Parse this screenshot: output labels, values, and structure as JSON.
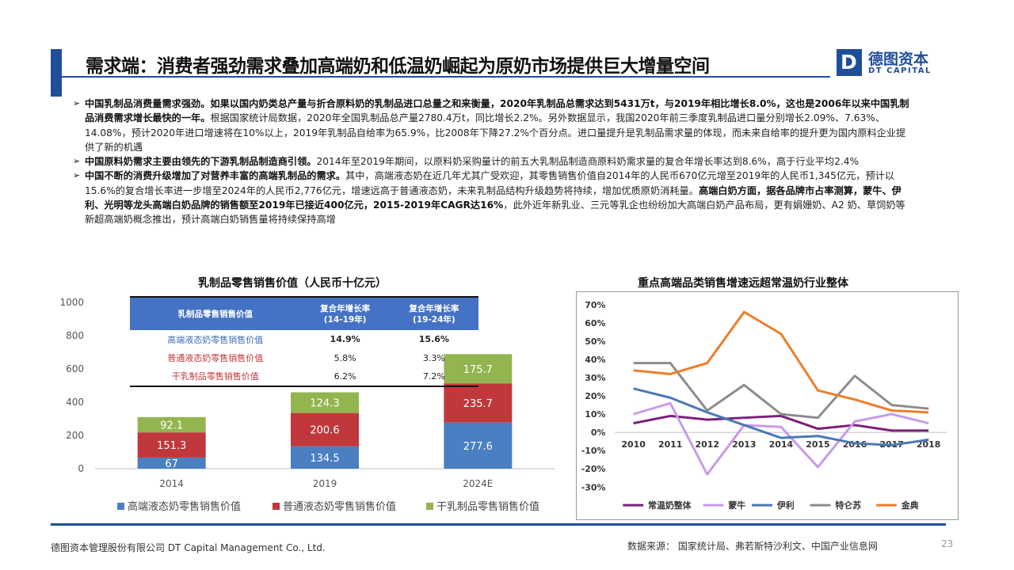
{
  "header": {
    "title": "需求端：消费者强劲需求叠加高端奶和低温奶崛起为原奶市场提供巨大增量空间",
    "logo_cn": "德图资本",
    "logo_en": "DT CAPITAL"
  },
  "bullets": [
    {
      "bold": "中国乳制品消费量需求强劲。如果以国内奶类总产量与折合原料奶的乳制品进口总量之和来衡量，2020年乳制品总需求达到5431万t，与2019年相比增长8.0%，这也是2006年以来中国乳制品消费需求增长最快的一年。",
      "text": "根据国家统计局数据，2020年全国乳制品总产量2780.4万t，同比增长2.2%。另外数据显示，我国2020年前三季度乳制品进口量分别增长2.09%、7.63%、14.08%，预计2020年进口增速将在10%以上，2019年乳制品自给率为65.9%，比2008年下降27.2%个百分点。进口量提升是乳制品需求量的体现，而未来自给率的提升更为国内原料企业提供了新的机遇",
      "bold2": "",
      "text2": ""
    },
    {
      "bold": "中国原料奶需求主要由领先的下游乳制品制造商引领。",
      "text": "2014年至2019年期间，以原料奶采购量计的前五大乳制品制造商原料奶需求量的复合年增长率达到8.6%，高于行业平均2.4%",
      "bold2": "",
      "text2": ""
    },
    {
      "bold": "中国不断的消费升级增加了对营养丰富的高端乳制品的需求。",
      "text": "其中，高端液态奶在近几年尤其广受欢迎，其零售销售价值自2014年的人民币670亿元增至2019年的人民币1,345亿元，预计以15.6%的复合增长率进一步增至2024年的人民币2,776亿元，增速远高于普通液态奶，未来乳制品结构升级趋势将持续，增加优质原奶消耗量。",
      "bold2": "高端白奶方面，据各品牌市占率测算，蒙牛、伊利、光明等龙头高端白奶品牌的销售额至2019年已接近400亿元，2015-2019年CAGR达16%",
      "text2": "，此外近年新乳业、三元等乳企也纷纷加大高端白奶产品布局，更有娟姗奶、A2 奶、草饲奶等新超高端奶概念推出，预计高端白奶销售量将持续保持高增"
    }
  ],
  "chart_data": [
    {
      "type": "bar",
      "title": "乳制品零售销售价值（人民币十亿元）",
      "categories": [
        "2014",
        "2019",
        "2024E"
      ],
      "series": [
        {
          "name": "高端液态奶零售销售价值",
          "values": [
            67,
            134.5,
            277.6
          ],
          "color": "#4a7fc1"
        },
        {
          "name": "普通液态奶零售销售价值",
          "values": [
            151.3,
            200.6,
            235.7
          ],
          "color": "#c0383c"
        },
        {
          "name": "干乳制品零售销售价值",
          "values": [
            92.1,
            124.3,
            175.7
          ],
          "color": "#93b550"
        }
      ],
      "stacked": true,
      "ylim": [
        0,
        1000
      ],
      "yticks": [
        0,
        200,
        400,
        600,
        800,
        1000
      ],
      "legend": "bottom",
      "table": {
        "headers": [
          "乳制品零售销售价值",
          "复合年增长率\n(14-19年)",
          "复合年增长率\n(19-24年)"
        ],
        "rows": [
          {
            "label": "高端液态奶零售销售价值",
            "c1": "14.9%",
            "c2": "15.6%",
            "color": "#3d6fb5",
            "bold": true
          },
          {
            "label": "普通液态奶零售销售价值",
            "c1": "5.8%",
            "c2": "3.3%",
            "color": "#c0383c",
            "bold": false
          },
          {
            "label": "干乳制品零售销售价值",
            "c1": "6.2%",
            "c2": "7.2%",
            "color": "#c0383c",
            "bold": false
          }
        ]
      }
    },
    {
      "type": "line",
      "title": "重点高端品类销售增速远超常温奶行业整体",
      "x": [
        "2010",
        "2011",
        "2012",
        "2013",
        "2014",
        "2015",
        "2016",
        "2017",
        "2018"
      ],
      "ylim": [
        -30,
        70
      ],
      "yticks": [
        -30,
        -20,
        -10,
        0,
        10,
        20,
        30,
        40,
        50,
        60,
        70
      ],
      "grid": false,
      "legend": "bottom",
      "series": [
        {
          "name": "常温奶整体",
          "values": [
            5,
            9,
            7,
            8,
            9,
            2,
            4,
            1,
            1
          ],
          "color": "#7b1f7a"
        },
        {
          "name": "蒙牛",
          "values": [
            10,
            16,
            -23,
            4,
            3,
            -19,
            6,
            10,
            5
          ],
          "color": "#c99ae8"
        },
        {
          "name": "伊利",
          "values": [
            24,
            19,
            11,
            4,
            -3,
            -2,
            -6,
            -7,
            -4
          ],
          "color": "#4a78b5"
        },
        {
          "name": "特仑苏",
          "values": [
            38,
            38,
            12,
            26,
            10,
            8,
            31,
            15,
            13
          ],
          "color": "#8c8c8c"
        },
        {
          "name": "金典",
          "values": [
            34,
            32,
            38,
            66,
            54,
            23,
            18,
            12,
            11
          ],
          "color": "#ee7d28"
        }
      ]
    }
  ],
  "footer": {
    "company": "德图资本管理股份有限公司 DT Capital Management Co., Ltd.",
    "source": "数据来源：  国家统计局、弗若斯特沙利文、中国产业信息网",
    "page": "23"
  }
}
